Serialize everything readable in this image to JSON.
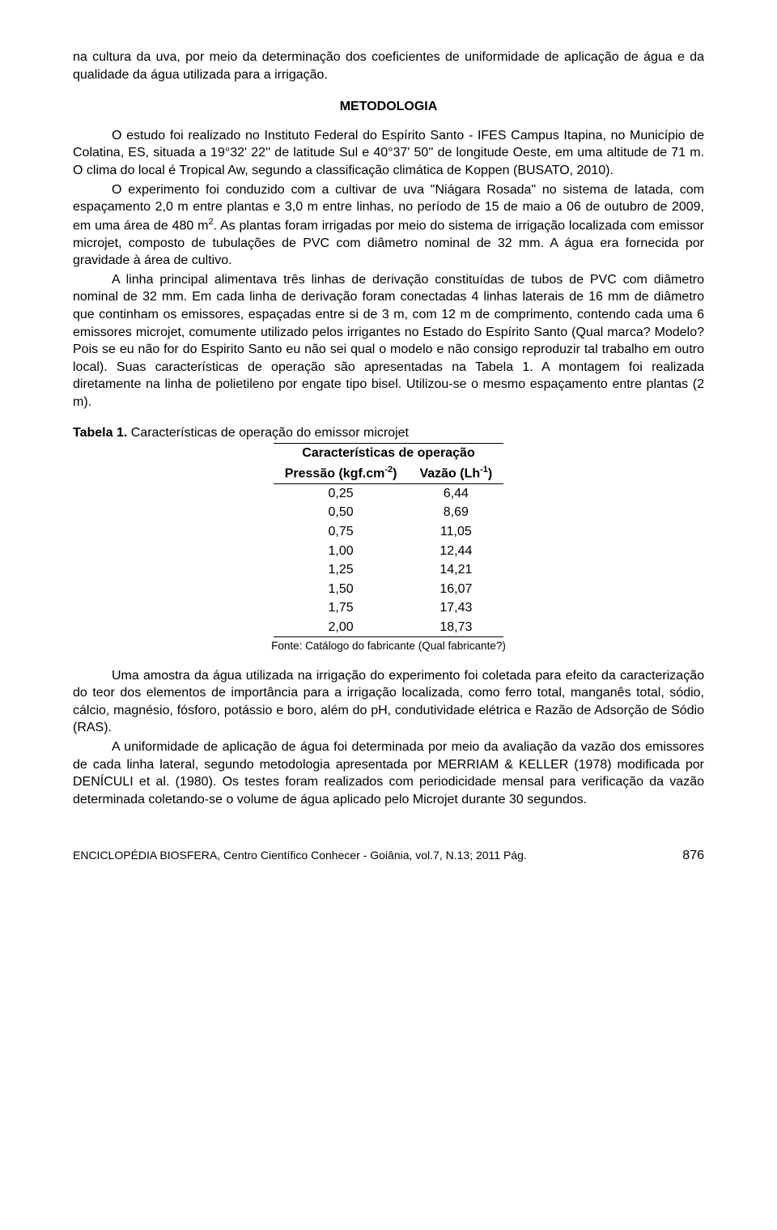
{
  "intro": "na cultura da uva, por meio da determinação dos coeficientes de uniformidade de aplicação de água e da qualidade da água utilizada para a irrigação.",
  "section": "METODOLOGIA",
  "p1": "O estudo foi realizado no Instituto Federal do Espírito Santo - IFES Campus Itapina, no Município de Colatina, ES, situada a 19°32' 22'' de latitude Sul e 40°37' 50'' de longitude Oeste, em uma altitude de 71 m. O clima do local é Tropical Aw, segundo a classificação climática de Koppen (BUSATO, 2010).",
  "p2a": "O experimento foi conduzido com a cultivar de uva \"Niágara Rosada\" no sistema de latada, com espaçamento 2,0 m entre plantas e 3,0 m entre linhas, no período de 15 de maio a 06 de outubro de 2009, em uma área de 480 m",
  "p2b": ". As plantas foram irrigadas por meio do sistema de irrigação localizada com emissor microjet, composto de tubulações de PVC com diâmetro nominal de 32 mm. A água era fornecida por gravidade à área de cultivo.",
  "p3": "A linha principal alimentava três linhas de derivação constituídas de tubos de PVC com diâmetro nominal de 32 mm. Em cada linha de derivação foram conectadas 4 linhas laterais de 16 mm de diâmetro que continham os emissores, espaçadas entre si de 3 m, com 12 m de comprimento, contendo cada uma 6 emissores microjet, comumente utilizado pelos irrigantes no Estado do Espírito Santo (Qual marca? Modelo? Pois se eu não for do Espirito Santo eu não sei qual o modelo e não consigo reproduzir tal trabalho em outro local). Suas características de operação são apresentadas na Tabela 1. A montagem foi realizada diretamente na linha de polietileno por engate tipo bisel. Utilizou-se o mesmo espaçamento entre plantas (2 m).",
  "table": {
    "title_bold": "Tabela 1.",
    "title_rest": " Características de operação do emissor microjet",
    "header_top": "Características de operação",
    "col1": "Pressão (kgf.cm",
    "col1_sup": "-2",
    "col1_end": ")",
    "col2": "Vazão (Lh",
    "col2_sup": "-1",
    "col2_end": ")",
    "rows": [
      [
        "0,25",
        "6,44"
      ],
      [
        "0,50",
        "8,69"
      ],
      [
        "0,75",
        "11,05"
      ],
      [
        "1,00",
        "12,44"
      ],
      [
        "1,25",
        "14,21"
      ],
      [
        "1,50",
        "16,07"
      ],
      [
        "1,75",
        "17,43"
      ],
      [
        "2,00",
        "18,73"
      ]
    ],
    "source": "Fonte: Catálogo do fabricante (Qual fabricante?)"
  },
  "p4": "Uma amostra da água utilizada na irrigação do experimento foi coletada para efeito da caracterização do teor dos elementos de importância para a irrigação localizada, como ferro total, manganês total, sódio, cálcio, magnésio, fósforo, potássio e boro, além do pH, condutividade elétrica e Razão de Adsorção de Sódio (RAS).",
  "p5": "A uniformidade de aplicação de água foi determinada por meio da avaliação da vazão dos emissores de cada linha lateral, segundo metodologia apresentada por MERRIAM & KELLER (1978) modificada por DENÍCULI et al. (1980). Os testes foram realizados com periodicidade mensal para verificação da vazão determinada coletando-se o volume de água aplicado pelo Microjet durante 30 segundos.",
  "footer_left": "ENCICLOPÉDIA BIOSFERA, Centro Científico Conhecer - Goiânia, vol.7, N.13; 2011 Pág.",
  "footer_page": "876"
}
